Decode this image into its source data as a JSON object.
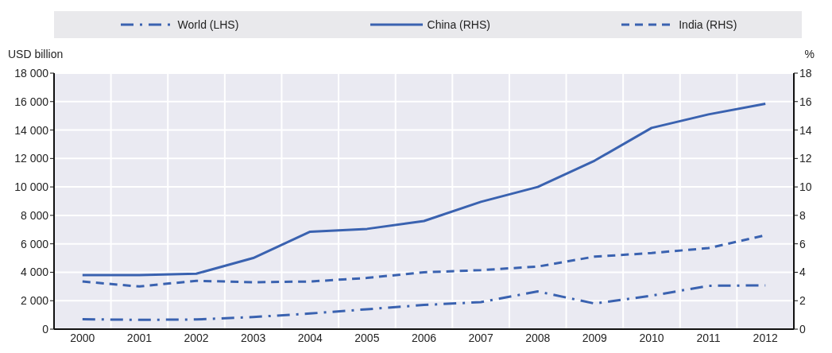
{
  "chart_data": {
    "type": "line",
    "ylabel": "USD billion",
    "y2label": "%",
    "categories": [
      "2000",
      "2001",
      "2002",
      "2003",
      "2004",
      "2005",
      "2006",
      "2007",
      "2008",
      "2009",
      "2010",
      "2011",
      "2012"
    ],
    "series": [
      {
        "name": "World (LHS)",
        "color": "#3a62b0",
        "line_style": "dashdot",
        "values": [
          700,
          650,
          680,
          850,
          1100,
          1400,
          1700,
          1900,
          2650,
          1800,
          2350,
          3050,
          3080
        ]
      },
      {
        "name": "China (RHS)",
        "color": "#3a62b0",
        "line_style": "solid",
        "axis": "y2",
        "values": [
          3.8,
          3.8,
          3.9,
          5.0,
          6.85,
          7.05,
          7.6,
          8.95,
          10.0,
          11.85,
          14.15,
          15.1,
          15.85
        ]
      },
      {
        "name": "India (RHS)",
        "color": "#3a62b0",
        "line_style": "dashed",
        "axis": "y2",
        "values": [
          3.35,
          3.0,
          3.4,
          3.3,
          3.35,
          3.6,
          4.0,
          4.15,
          4.4,
          5.1,
          5.35,
          5.7,
          6.6
        ]
      }
    ],
    "ylim": [
      0,
      18000
    ],
    "yticks": [
      0,
      {
        "value": 2000,
        "label": "2 000"
      },
      {
        "value": 4000,
        "label": "4 000"
      },
      {
        "value": 6000,
        "label": "6 000"
      },
      {
        "value": 8000,
        "label": "8 000"
      },
      {
        "value": 10000,
        "label": "10 000"
      },
      {
        "value": 12000,
        "label": "12 000"
      },
      {
        "value": 14000,
        "label": "14 000"
      },
      {
        "value": 16000,
        "label": "16 000"
      },
      {
        "value": 18000,
        "label": "18 000"
      }
    ],
    "y2lim": [
      0,
      18
    ],
    "y2ticks": [
      0,
      2,
      4,
      6,
      8,
      10,
      12,
      14,
      16,
      18
    ],
    "grid": true,
    "legend": "top",
    "marker": "none"
  }
}
